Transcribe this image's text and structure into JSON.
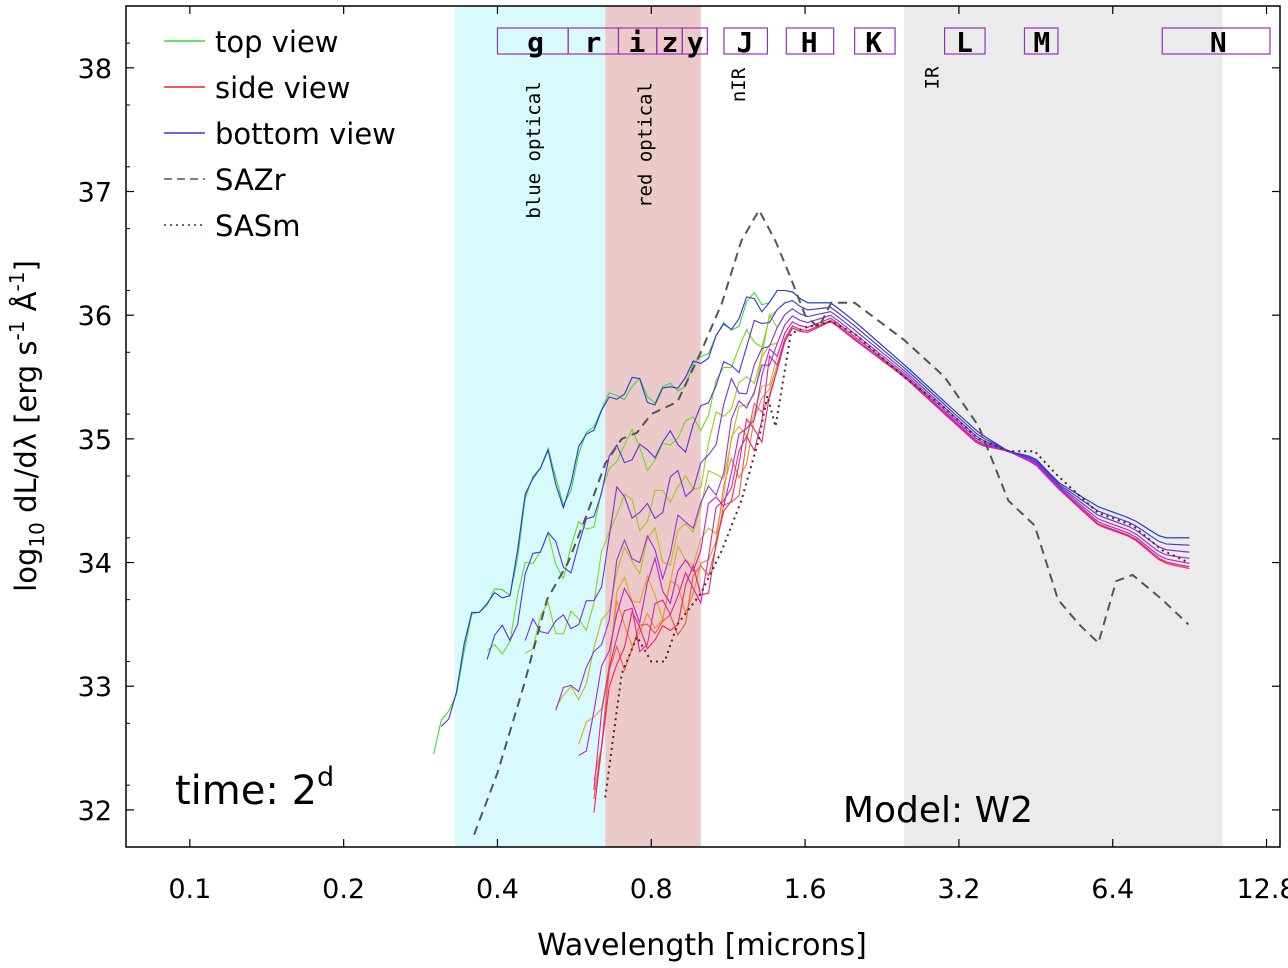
{
  "chart_data": {
    "type": "line",
    "title": "",
    "xlabel": "Wavelength [microns]",
    "ylabel": "log10 dL/dλ [erg s-1 Å-1]",
    "ylabel_parts": {
      "prefix": "log",
      "sub": "10",
      "mid": " dL/dλ [erg s",
      "sup1": "-1",
      "mid2": " Å",
      "sup2": "-1",
      "suffix": "]"
    },
    "xscale": "log2",
    "xlim": [
      0.075,
      13.6
    ],
    "ylim": [
      31.7,
      38.5
    ],
    "xticks": [
      0.1,
      0.2,
      0.4,
      0.8,
      1.6,
      3.2,
      6.4,
      12.8
    ],
    "xtick_labels": [
      "0.1",
      "0.2",
      "0.4",
      "0.8",
      "1.6",
      "3.2",
      "6.4",
      "12.8"
    ],
    "yticks": [
      32,
      33,
      34,
      35,
      36,
      37,
      38
    ],
    "ytick_labels": [
      "32",
      "33",
      "34",
      "35",
      "36",
      "37",
      "38"
    ],
    "time_label": {
      "text": "time: 2",
      "sup": "d"
    },
    "model_label": "Model: W2",
    "regions": [
      {
        "name": "blue optical",
        "x0": 0.33,
        "x1": 0.65,
        "color": "#d9fafc"
      },
      {
        "name": "red optical",
        "x0": 0.65,
        "x1": 1.0,
        "color": "#edcaca"
      },
      {
        "name": "nIR",
        "x0": 1.0,
        "x1": 2.5,
        "color": "#ffffff"
      },
      {
        "name": "IR",
        "x0": 2.5,
        "x1": 10.5,
        "color": "#ebebeb"
      }
    ],
    "region_labels": [
      {
        "text": "blue optical",
        "x": 0.485
      },
      {
        "text": "red optical",
        "x": 0.8
      },
      {
        "text": "nIR",
        "x": 1.22
      },
      {
        "text": "IR",
        "x": 2.92
      }
    ],
    "bands": [
      {
        "name": "g",
        "x0": 0.4,
        "x1": 0.55,
        "label_x": 0.475
      },
      {
        "name": "r",
        "x0": 0.55,
        "x1": 0.69,
        "label_x": 0.615
      },
      {
        "name": "i",
        "x0": 0.69,
        "x1": 0.82,
        "label_x": 0.75
      },
      {
        "name": "z",
        "x0": 0.82,
        "x1": 0.92,
        "label_x": 0.87
      },
      {
        "name": "y",
        "x0": 0.92,
        "x1": 1.03,
        "label_x": 0.975
      },
      {
        "name": "J",
        "x0": 1.11,
        "x1": 1.35,
        "label_x": 1.22
      },
      {
        "name": "H",
        "x0": 1.47,
        "x1": 1.82,
        "label_x": 1.63
      },
      {
        "name": "K",
        "x0": 2.0,
        "x1": 2.4,
        "label_x": 2.18
      },
      {
        "name": "L",
        "x0": 3.0,
        "x1": 3.6,
        "label_x": 3.28
      },
      {
        "name": "M",
        "x0": 4.3,
        "x1": 5.0,
        "label_x": 4.65
      },
      {
        "name": "N",
        "x0": 8.0,
        "x1": 13.0,
        "label_x": 10.3
      }
    ],
    "band_box_color": "#9b2fbe",
    "legend": [
      {
        "label": "top view",
        "color": "#33dd33",
        "style": "solid"
      },
      {
        "label": "side view",
        "color": "#ee2222",
        "style": "solid"
      },
      {
        "label": "bottom view",
        "color": "#3333dd",
        "style": "solid"
      },
      {
        "label": "SAZr",
        "color": "#555555",
        "style": "dashed"
      },
      {
        "label": "SASm",
        "color": "#552222",
        "style": "dotted"
      }
    ],
    "series": [
      {
        "name": "SAZr",
        "color": "#555555",
        "style": "dashed",
        "x": [
          0.36,
          0.4,
          0.45,
          0.5,
          0.55,
          0.6,
          0.65,
          0.7,
          0.75,
          0.8,
          0.9,
          1.0,
          1.1,
          1.2,
          1.3,
          1.4,
          1.5,
          1.6,
          1.7,
          1.8,
          2.0,
          2.5,
          3.0,
          3.5,
          4.0,
          4.5,
          5.0,
          5.5,
          6.0,
          6.5,
          7.0,
          8.0,
          9.0
        ],
        "y": [
          31.8,
          32.3,
          33.0,
          33.7,
          34.0,
          34.4,
          34.8,
          35.0,
          35.05,
          35.2,
          35.3,
          35.7,
          36.1,
          36.6,
          36.85,
          36.6,
          36.3,
          36.0,
          35.9,
          36.1,
          36.1,
          35.8,
          35.5,
          35.1,
          34.5,
          34.3,
          33.7,
          33.5,
          33.35,
          33.85,
          33.9,
          33.7,
          33.5
        ]
      },
      {
        "name": "SASm",
        "color": "#552222",
        "style": "dotted",
        "x": [
          0.65,
          0.7,
          0.75,
          0.8,
          0.85,
          0.9,
          1.0,
          1.1,
          1.2,
          1.3,
          1.35,
          1.4,
          1.5,
          1.6,
          1.8,
          2.0,
          2.5,
          3.0,
          3.5,
          4.0,
          4.5,
          5.0,
          6.0,
          7.0,
          8.0,
          9.0
        ],
        "y": [
          32.1,
          33.1,
          33.4,
          33.2,
          33.2,
          33.5,
          33.75,
          34.1,
          34.5,
          35.0,
          35.35,
          35.1,
          35.85,
          35.9,
          35.95,
          35.85,
          35.5,
          35.25,
          35.0,
          34.9,
          34.9,
          34.7,
          34.4,
          34.3,
          34.1,
          34.0
        ]
      }
    ],
    "viewing_angle_curves": {
      "note": "family of spectra from top view (green) through side view (red) to bottom view (blue/purple)",
      "angles": [
        "top view",
        "side view",
        "bottom view"
      ]
    }
  }
}
